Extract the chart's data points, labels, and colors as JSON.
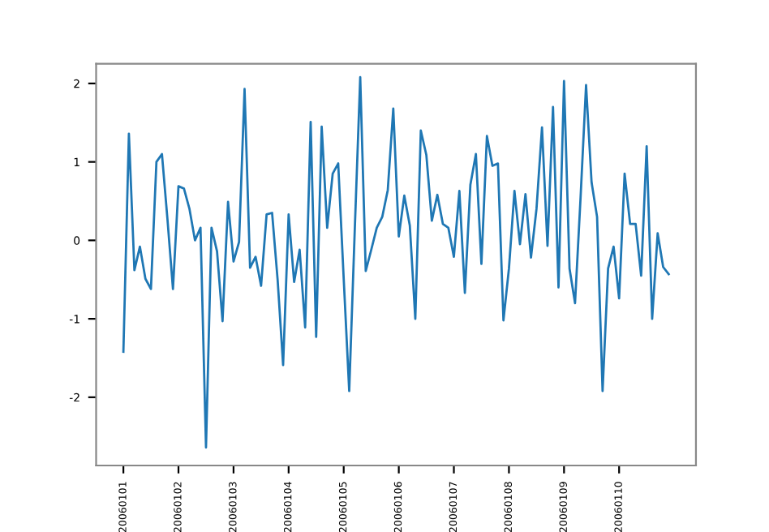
{
  "chart_data": {
    "type": "line",
    "categories": [
      "20060101",
      null,
      null,
      null,
      null,
      null,
      null,
      null,
      null,
      null,
      "20060102",
      null,
      null,
      null,
      null,
      null,
      null,
      null,
      null,
      null,
      "20060103",
      null,
      null,
      null,
      null,
      null,
      null,
      null,
      null,
      null,
      "20060104",
      null,
      null,
      null,
      null,
      null,
      null,
      null,
      null,
      null,
      "20060105",
      null,
      null,
      null,
      null,
      null,
      null,
      null,
      null,
      null,
      "20060106",
      null,
      null,
      null,
      null,
      null,
      null,
      null,
      null,
      null,
      "20060107",
      null,
      null,
      null,
      null,
      null,
      null,
      null,
      null,
      null,
      "20060108",
      null,
      null,
      null,
      null,
      null,
      null,
      null,
      null,
      null,
      "20060109",
      null,
      null,
      null,
      null,
      null,
      null,
      null,
      null,
      null,
      "20060110",
      null,
      null,
      null,
      null,
      null,
      null,
      null,
      null,
      null
    ],
    "series": [
      {
        "color": "#1f77b4",
        "values": [
          -1.42,
          1.36,
          -0.38,
          -0.08,
          -0.49,
          -0.62,
          1.0,
          1.1,
          0.27,
          -0.62,
          0.69,
          0.66,
          0.4,
          0.0,
          0.16,
          -2.64,
          0.16,
          -0.14,
          -1.03,
          0.49,
          -0.27,
          -0.02,
          1.93,
          -0.35,
          -0.21,
          -0.58,
          0.33,
          0.35,
          -0.5,
          -1.59,
          0.33,
          -0.53,
          -0.12,
          -1.11,
          1.51,
          -1.23,
          1.45,
          0.16,
          0.85,
          0.98,
          -0.49,
          -1.92,
          0.12,
          2.08,
          -0.39,
          -0.12,
          0.16,
          0.3,
          0.64,
          1.68,
          0.05,
          0.57,
          0.19,
          -1.0,
          1.4,
          1.09,
          0.25,
          0.58,
          0.21,
          0.16,
          -0.21,
          0.63,
          -0.67,
          0.71,
          1.1,
          -0.3,
          1.33,
          0.95,
          0.98,
          -1.02,
          -0.36,
          0.63,
          -0.05,
          0.59,
          -0.22,
          0.4,
          1.44,
          -0.07,
          1.7,
          -0.6,
          2.03,
          -0.36,
          -0.8,
          0.54,
          1.98,
          0.74,
          0.3,
          -1.92,
          -0.36,
          -0.08,
          -0.74,
          0.85,
          0.21,
          0.21,
          -0.45,
          1.2,
          -1.0,
          0.09,
          -0.34,
          -0.43
        ]
      }
    ],
    "ylim": [
      -2.87,
      2.25
    ],
    "yticks": [
      -2,
      -1,
      0,
      1,
      2
    ],
    "grid": false,
    "legend": false
  }
}
